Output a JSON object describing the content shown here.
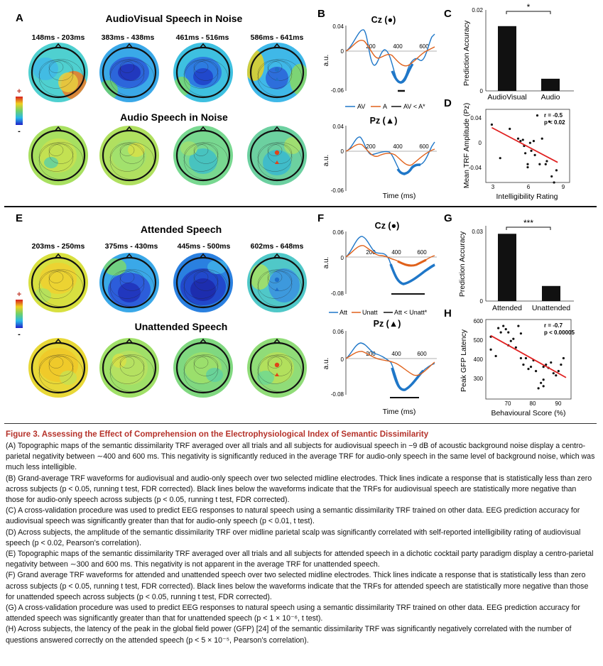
{
  "colors": {
    "caption_title": "#b5322a",
    "audiovisual": "#1f77c8",
    "audio": "#e0611a",
    "regression": "#e02020"
  },
  "panelA": {
    "label": "A",
    "title1": "AudioVisual Speech in Noise",
    "title2": "Audio Speech in Noise",
    "times": [
      "148ms - 203ms",
      "383ms - 438ms",
      "461ms - 516ms",
      "586ms - 641ms"
    ],
    "colorbar_plus": "+",
    "colorbar_minus": "-"
  },
  "panelB": {
    "label": "B",
    "cz": "Cz (●)",
    "pz": "Pz (▲)",
    "legend": [
      "AV",
      "A",
      "AV < A*"
    ],
    "ylabel": "a.u.",
    "xlabel": "Time (ms)",
    "ticks_top": [
      "0.04",
      "0",
      "-0.06"
    ],
    "ticks_bot": [
      "0.04",
      "0",
      "-0.06"
    ],
    "xticks": [
      "200",
      "400",
      "600"
    ]
  },
  "panelC": {
    "label": "C",
    "ylabel": "Prediction Accuracy",
    "ytick": "0.02",
    "ytick0": "0",
    "sig": "*",
    "chart_data": {
      "type": "bar",
      "categories": [
        "AudioVisual",
        "Audio"
      ],
      "values": [
        0.016,
        0.003
      ],
      "ylim": [
        0,
        0.02
      ]
    }
  },
  "panelD": {
    "label": "D",
    "ylabel": "Mean TRF Amplitude (Pz)",
    "xlabel": "Intelligibility Rating",
    "stat1": "r = -0.5",
    "stat2": "p < 0.02",
    "yticks": [
      "0.04",
      "0",
      "-0.04"
    ],
    "xticks": [
      "3",
      "6",
      "9"
    ],
    "chart_data": {
      "type": "scatter",
      "xlim": [
        2.5,
        9.5
      ],
      "ylim": [
        -0.06,
        0.06
      ],
      "points": [
        [
          3,
          0.035
        ],
        [
          3.7,
          -0.02
        ],
        [
          4.5,
          0.028
        ],
        [
          5.2,
          0.012
        ],
        [
          5.4,
          0.008
        ],
        [
          5.6,
          0.01
        ],
        [
          5.7,
          0.0
        ],
        [
          5.8,
          -0.012
        ],
        [
          6.0,
          -0.03
        ],
        [
          6.0,
          -0.035
        ],
        [
          6.2,
          0.005
        ],
        [
          6.3,
          -0.008
        ],
        [
          6.5,
          0.008
        ],
        [
          6.6,
          -0.015
        ],
        [
          6.8,
          0.05
        ],
        [
          7.0,
          -0.03
        ],
        [
          7.2,
          0.012
        ],
        [
          7.5,
          -0.03
        ],
        [
          7.6,
          -0.025
        ],
        [
          7.8,
          0.04
        ],
        [
          8.0,
          -0.05
        ],
        [
          8.2,
          -0.06
        ],
        [
          8.4,
          -0.04
        ]
      ],
      "fit": [
        [
          3,
          0.03
        ],
        [
          8.5,
          -0.027
        ]
      ]
    }
  },
  "panelE": {
    "label": "E",
    "title1": "Attended Speech",
    "title2": "Unattended Speech",
    "times": [
      "203ms - 250ms",
      "375ms - 430ms",
      "445ms - 500ms",
      "602ms - 648ms"
    ],
    "colorbar_plus": "+",
    "colorbar_minus": "-"
  },
  "panelF": {
    "label": "F",
    "cz": "Cz (●)",
    "pz": "Pz (▲)",
    "legend": [
      "Att",
      "Unatt",
      "Att < Unatt*"
    ],
    "ylabel": "a.u.",
    "xlabel": "Time (ms)",
    "ticks_top": [
      "0.06",
      "0",
      "-0.08"
    ],
    "ticks_bot": [
      "0.06",
      "0",
      "-0.08"
    ],
    "xticks": [
      "200",
      "400",
      "600"
    ]
  },
  "panelG": {
    "label": "G",
    "ylabel": "Prediction Accuracy",
    "ytick": "0.03",
    "ytick0": "0",
    "sig": "***",
    "chart_data": {
      "type": "bar",
      "categories": [
        "Attended",
        "Unattended"
      ],
      "values": [
        0.029,
        0.0065
      ],
      "ylim": [
        0,
        0.03
      ]
    }
  },
  "panelH": {
    "label": "H",
    "ylabel": "Peak GFP Latency",
    "xlabel": "Behavioural Score (%)",
    "stat1": "r = -0.7",
    "stat2": "p < 0.00005",
    "yticks": [
      "600",
      "500",
      "400",
      "300"
    ],
    "xticks": [
      "70",
      "80",
      "90"
    ],
    "chart_data": {
      "type": "scatter",
      "xlim": [
        63,
        97
      ],
      "ylim": [
        250,
        620
      ],
      "points": [
        [
          65,
          540
        ],
        [
          65,
          480
        ],
        [
          67,
          450
        ],
        [
          68,
          580
        ],
        [
          69,
          560
        ],
        [
          70,
          590
        ],
        [
          71,
          575
        ],
        [
          72,
          560
        ],
        [
          72,
          500
        ],
        [
          73,
          520
        ],
        [
          74,
          530
        ],
        [
          75,
          490
        ],
        [
          76,
          590
        ],
        [
          77,
          555
        ],
        [
          77,
          440
        ],
        [
          78,
          410
        ],
        [
          79,
          440
        ],
        [
          80,
          390
        ],
        [
          81,
          400
        ],
        [
          82,
          430
        ],
        [
          83,
          380
        ],
        [
          85,
          325
        ],
        [
          86,
          340
        ],
        [
          86,
          400
        ],
        [
          87,
          410
        ],
        [
          88,
          395
        ],
        [
          89,
          420
        ],
        [
          90,
          370
        ],
        [
          91,
          360
        ],
        [
          92,
          380
        ],
        [
          93,
          410
        ],
        [
          94,
          440
        ],
        [
          86,
          310
        ],
        [
          84,
          300
        ]
      ],
      "fit": [
        [
          65,
          545
        ],
        [
          95,
          350
        ]
      ]
    }
  },
  "caption": {
    "title": "Figure 3.  Assessing the Effect of Comprehension on the Electrophysiological Index of Semantic Dissimilarity",
    "paragraphs": [
      "(A) Topographic maps of the semantic dissimilarity TRF averaged over all trials and all subjects for audiovisual speech in −9 dB of acoustic background noise display a centro-parietal negativity between ∼400 and 600 ms. This negativity is significantly reduced in the average TRF for audio-only speech in the same level of background noise, which was much less intelligible.",
      "(B) Grand-average TRF waveforms for audiovisual and audio-only speech over two selected midline electrodes. Thick lines indicate a response that is statistically less than zero across subjects (p < 0.05, running t test, FDR corrected). Black lines below the waveforms indicate that the TRFs for audiovisual speech are statistically more negative than those for audio-only speech across subjects (p < 0.05, running t test, FDR corrected).",
      "(C) A cross-validation procedure was used to predict EEG responses to natural speech using a semantic dissimilarity TRF trained on other data. EEG prediction accuracy for audiovisual speech was significantly greater than that for audio-only speech (p < 0.01, t test).",
      "(D) Across subjects, the amplitude of the semantic dissimilarity TRF over midline parietal scalp was significantly correlated with self-reported intelligibility rating of audiovisual speech (p < 0.02, Pearson’s correlation).",
      "(E) Topographic maps of the semantic dissimilarity TRF averaged over all trials and all subjects for attended speech in a dichotic cocktail party paradigm display a centro-parietal negativity between ∼300 and 600 ms. This negativity is not apparent in the average TRF for unattended speech.",
      "(F) Grand average TRF waveforms for attended and unattended speech over two selected midline electrodes. Thick lines indicate a response that is statistically less than zero across subjects (p < 0.05, running t test, FDR corrected). Black lines below the waveforms indicate that the TRFs for attended speech are statistically more negative than those for unattended speech across subjects (p < 0.05, running t test, FDR corrected).",
      "(G) A cross-validation procedure was used to predict EEG responses to natural speech using a semantic dissimilarity TRF trained on other data. EEG prediction accuracy for attended speech was significantly greater than that for unattended speech (p < 1 × 10⁻⁶, t test).",
      "(H) Across subjects, the latency of the peak in the global field power (GFP) [24] of the semantic dissimilarity TRF was significantly negatively correlated with the number of questions answered correctly on the attended speech (p < 5 × 10⁻⁵, Pearson’s correlation)."
    ]
  }
}
